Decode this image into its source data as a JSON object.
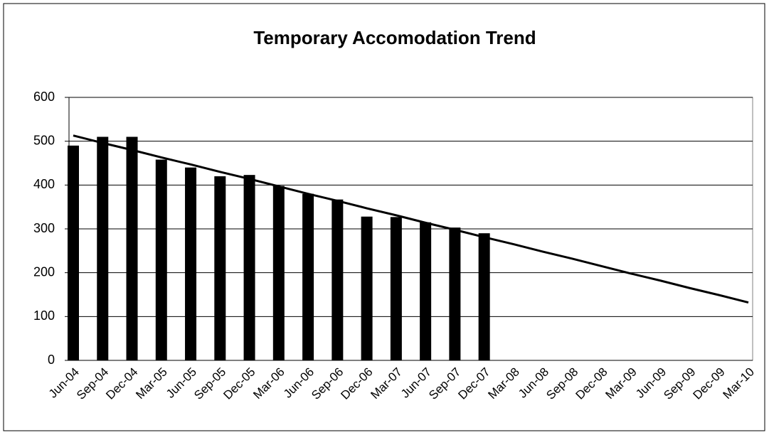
{
  "chart_data": {
    "type": "bar",
    "title": "Temporary Accomodation Trend",
    "categories": [
      "Jun-04",
      "Sep-04",
      "Dec-04",
      "Mar-05",
      "Jun-05",
      "Sep-05",
      "Dec-05",
      "Mar-06",
      "Jun-06",
      "Sep-06",
      "Dec-06",
      "Mar-07",
      "Jun-07",
      "Sep-07",
      "Dec-07",
      "Mar-08",
      "Jun-08",
      "Sep-08",
      "Dec-08",
      "Mar-09",
      "Jun-09",
      "Sep-09",
      "Dec-09",
      "Mar-10"
    ],
    "series": [
      {
        "type": "bar",
        "color": "#000000",
        "values": [
          490,
          510,
          510,
          458,
          440,
          420,
          423,
          398,
          380,
          367,
          328,
          327,
          315,
          303,
          290,
          null,
          null,
          null,
          null,
          null,
          null,
          null,
          null,
          null
        ]
      },
      {
        "type": "line",
        "color": "#000000",
        "values": [
          513,
          496,
          480,
          463,
          447,
          430,
          414,
          397,
          380,
          364,
          347,
          331,
          314,
          298,
          281,
          265,
          248,
          232,
          215,
          198,
          182,
          165,
          149,
          132
        ]
      }
    ],
    "ylim": [
      0,
      600
    ],
    "yticks": [
      0,
      100,
      200,
      300,
      400,
      500,
      600
    ],
    "grid": true
  }
}
